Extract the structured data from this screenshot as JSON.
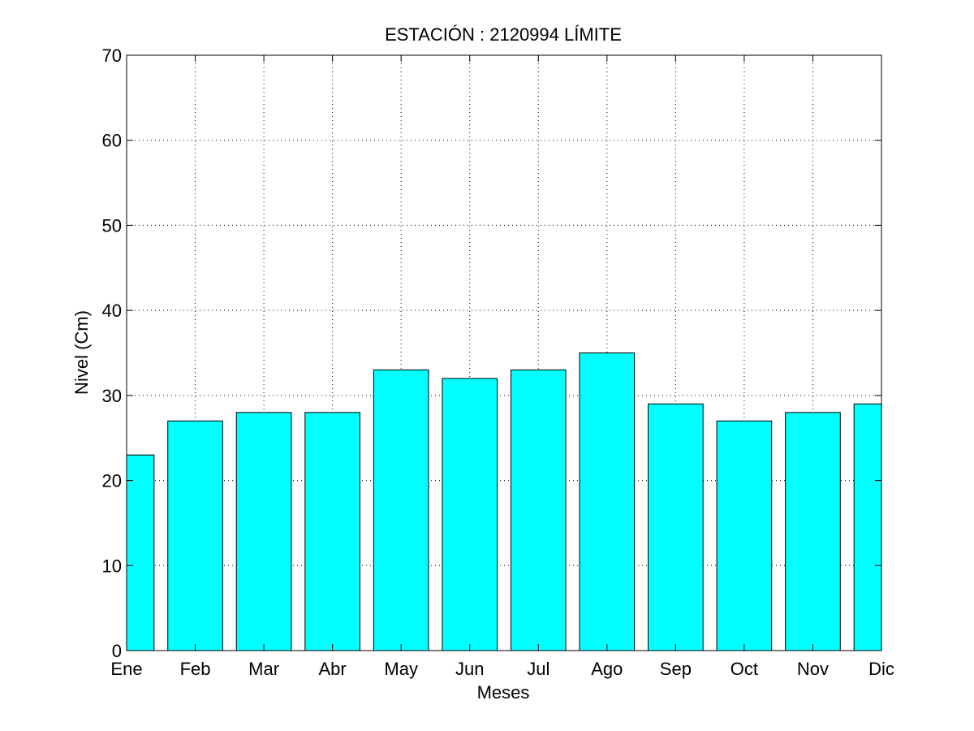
{
  "chart_data": {
    "type": "bar",
    "title": "ESTACIÓN :  2120994  LÍMITE",
    "xlabel": "Meses",
    "ylabel": "Nivel (Cm)",
    "categories": [
      "Ene",
      "Feb",
      "Mar",
      "Abr",
      "May",
      "Jun",
      "Jul",
      "Ago",
      "Sep",
      "Oct",
      "Nov",
      "Dic"
    ],
    "values": [
      23,
      27,
      28,
      28,
      33,
      32,
      33,
      35,
      29,
      27,
      28,
      29
    ],
    "ylim": [
      0,
      70
    ],
    "yticks": [
      "0",
      "10",
      "20",
      "30",
      "40",
      "50",
      "60",
      "70"
    ],
    "grid": true,
    "bar_color": "#00ffff",
    "edge_color": "#000000",
    "background": "#ffffff"
  }
}
